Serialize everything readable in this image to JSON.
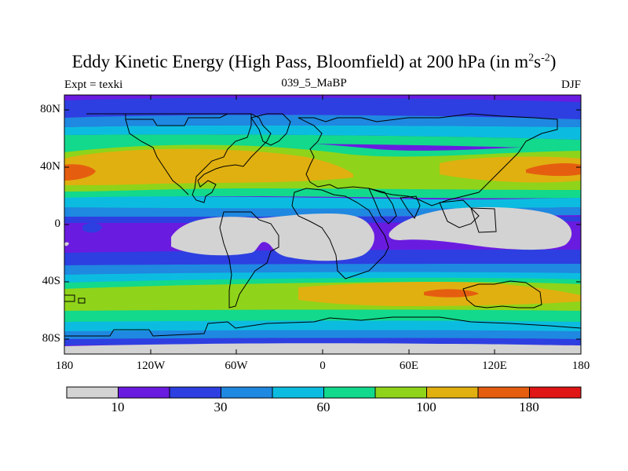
{
  "title_main": "Eddy Kinetic Energy (High Pass, Bloomfield) at 200 hPa (in m",
  "title_sup1": "2",
  "title_mid": "s",
  "title_sup2": "-2",
  "title_end": ")",
  "left_label": "Expt = texki",
  "center_label": "039_5_MaBP",
  "right_label": "DJF",
  "lat_labels": [
    "80N",
    "40N",
    "0",
    "40S",
    "80S"
  ],
  "lon_labels": [
    "180",
    "120W",
    "60W",
    "0",
    "60E",
    "120E",
    "180"
  ],
  "colorbar": {
    "colors": [
      "#d3d3d3",
      "#6a1be0",
      "#2d3fe0",
      "#1f88e0",
      "#0cbce0",
      "#12d98c",
      "#8fd41a",
      "#e0b010",
      "#e55e10",
      "#e01515"
    ],
    "labels": [
      "10",
      "30",
      "60",
      "100",
      "180"
    ]
  },
  "chart_data": {
    "type": "heatmap",
    "title": "Eddy Kinetic Energy (High Pass, Bloomfield) at 200 hPa (in m2s-2)",
    "xlabel": "",
    "ylabel": "",
    "x_ticks": [
      "180",
      "120W",
      "60W",
      "0",
      "60E",
      "120E",
      "180"
    ],
    "y_ticks": [
      "80N",
      "40N",
      "0",
      "40S",
      "80S"
    ],
    "lon_range": [
      -180,
      180
    ],
    "lat_range": [
      -90,
      90
    ],
    "colorbar_labels": [
      "10",
      "30",
      "60",
      "100",
      "180"
    ],
    "bands": [
      {
        "lat": 85,
        "value": 15
      },
      {
        "lat": 75,
        "value": 30
      },
      {
        "lat": 65,
        "value": 55
      },
      {
        "lat": 55,
        "value": 80
      },
      {
        "lat": 40,
        "value": 115
      },
      {
        "lat": 25,
        "value": 80
      },
      {
        "lat": 15,
        "value": 45
      },
      {
        "lat": 0,
        "value": 12
      },
      {
        "lat": -15,
        "value": 12
      },
      {
        "lat": -25,
        "value": 35
      },
      {
        "lat": -35,
        "value": 70
      },
      {
        "lat": -47,
        "value": 105
      },
      {
        "lat": -60,
        "value": 70
      },
      {
        "lat": -72,
        "value": 40
      },
      {
        "lat": -82,
        "value": 15
      },
      {
        "lat": -88,
        "value": 5
      }
    ]
  }
}
